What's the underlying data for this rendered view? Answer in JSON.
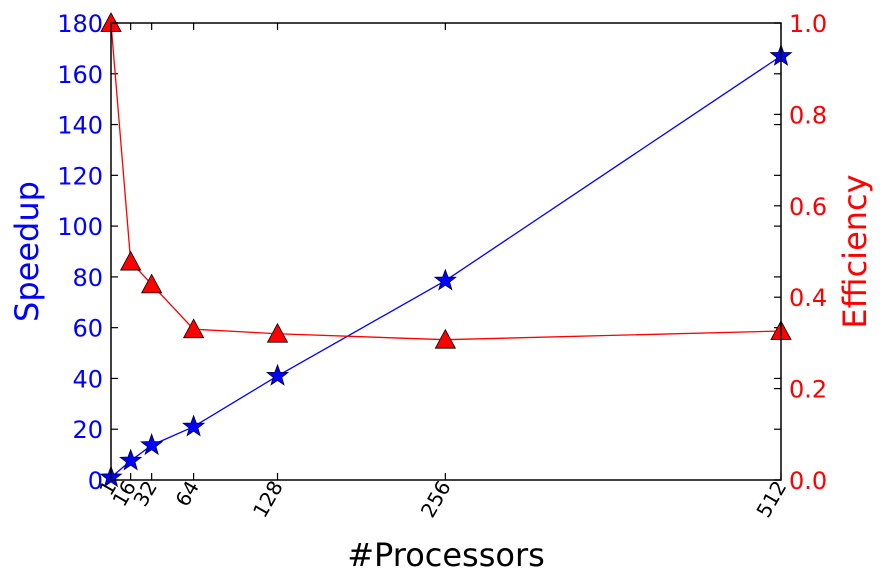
{
  "chart_data": {
    "type": "line",
    "xlabel": "#Processors",
    "x": [
      1,
      16,
      32,
      64,
      128,
      256,
      512
    ],
    "xlim": [
      1,
      512
    ],
    "xticks": [
      "1",
      "16",
      "32",
      "64",
      "128",
      "256",
      "512"
    ],
    "left_axis": {
      "label": "Speedup",
      "color": "#0000ff",
      "ylim": [
        0,
        180
      ],
      "ticks": [
        "0",
        "20",
        "40",
        "60",
        "80",
        "100",
        "120",
        "140",
        "160",
        "180"
      ]
    },
    "right_axis": {
      "label": "Efficiency",
      "color": "#ff0000",
      "ylim": [
        0.0,
        1.0
      ],
      "ticks": [
        "0.0",
        "0.2",
        "0.4",
        "0.6",
        "0.8",
        "1.0"
      ]
    },
    "series": [
      {
        "axis": "left",
        "color": "#0000ff",
        "marker": "star",
        "values": [
          1,
          7.6,
          13.7,
          21,
          41,
          78.5,
          167
        ]
      },
      {
        "axis": "right",
        "color": "#ff0000",
        "marker": "triangle",
        "values": [
          1.0,
          0.478,
          0.428,
          0.33,
          0.32,
          0.307,
          0.326
        ]
      }
    ],
    "grid": false
  }
}
